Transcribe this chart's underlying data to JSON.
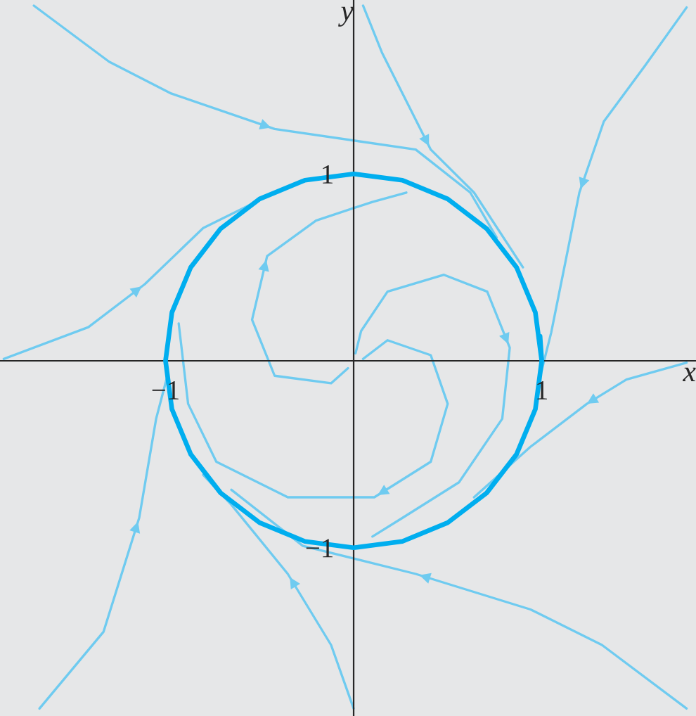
{
  "chart_data": {
    "type": "line",
    "xlabel": "x",
    "ylabel": "y",
    "xlim": [
      -1.88,
      1.82
    ],
    "ylim": [
      -1.9,
      1.93
    ],
    "xticks": [
      {
        "value": -1,
        "label": "−1"
      },
      1
    ],
    "yticks": [
      {
        "value": -1,
        "label": "−1"
      },
      1
    ],
    "grid": false,
    "legend": false,
    "marker": "none",
    "line_style": "solid",
    "series": [
      {
        "color": "#00aeef",
        "x": [
          1,
          0.966,
          0.866,
          0.707,
          0.5,
          0.259,
          0,
          -0.259,
          -0.5,
          -0.707,
          -0.866,
          -0.966,
          -1,
          -0.966,
          -0.866,
          -0.707,
          -0.5,
          -0.259,
          0,
          0.259,
          0.5,
          0.707,
          0.866,
          0.966,
          1,
          0.991
        ],
        "values": [
          0,
          0.259,
          0.5,
          0.707,
          0.866,
          0.966,
          1,
          0.966,
          0.866,
          0.707,
          0.5,
          0.259,
          0,
          -0.259,
          -0.5,
          -0.707,
          -0.866,
          -0.966,
          -1,
          -0.966,
          -0.866,
          -0.707,
          -0.5,
          -0.259,
          0,
          0.131
        ]
      },
      {
        "color": "#6fcbf0",
        "x": [
          -1.7,
          -1.3,
          -0.97,
          -0.42,
          0.33,
          0.62,
          0.76
        ],
        "values": [
          1.9,
          1.6,
          1.43,
          1.24,
          1.13,
          0.9,
          0.66
        ]
      },
      {
        "color": "#6fcbf0",
        "x": [
          0.05,
          0.15,
          0.26,
          0.41,
          0.64,
          0.9
        ],
        "values": [
          1.9,
          1.65,
          1.43,
          1.13,
          0.9,
          0.5
        ]
      },
      {
        "color": "#6fcbf0",
        "x": [
          1.77,
          1.55,
          1.33,
          1.2,
          1.12,
          1.05,
          1.0
        ],
        "values": [
          1.89,
          1.58,
          1.28,
          0.9,
          0.5,
          0.15,
          -0.05
        ]
      },
      {
        "color": "#6fcbf0",
        "x": [
          1.77,
          1.45,
          1.24,
          0.94,
          0.64
        ],
        "values": [
          -0.01,
          -0.1,
          -0.23,
          -0.46,
          -0.73
        ]
      },
      {
        "color": "#6fcbf0",
        "x": [
          1.77,
          1.32,
          0.94,
          0.33,
          -0.27,
          -0.65
        ],
        "values": [
          -1.86,
          -1.52,
          -1.33,
          -1.14,
          -0.99,
          -0.69
        ]
      },
      {
        "color": "#6fcbf0",
        "x": [
          0,
          -0.12,
          -0.35,
          -0.65,
          -0.8
        ],
        "values": [
          -1.86,
          -1.52,
          -1.14,
          -0.77,
          -0.61
        ]
      },
      {
        "color": "#6fcbf0",
        "x": [
          -1.67,
          -1.33,
          -1.14,
          -1.05,
          -0.99
        ],
        "values": [
          -1.86,
          -1.45,
          -0.84,
          -0.31,
          -0.08
        ]
      },
      {
        "color": "#6fcbf0",
        "x": [
          -1.86,
          -1.41,
          -1.11,
          -0.8,
          -0.5
        ],
        "values": [
          0.01,
          0.18,
          0.41,
          0.71,
          0.86
        ]
      },
      {
        "color": "#6fcbf0",
        "x": [
          0.01,
          0.04,
          0.18,
          0.48,
          0.71,
          0.83,
          0.79,
          0.56,
          0.26,
          0.1
        ],
        "values": [
          0.04,
          0.16,
          0.37,
          0.46,
          0.37,
          0.07,
          -0.31,
          -0.65,
          -0.84,
          -0.94
        ]
      },
      {
        "color": "#6fcbf0",
        "x": [
          0.05,
          0.18,
          0.41,
          0.5,
          0.41,
          0.11,
          -0.35,
          -0.73,
          -0.88,
          -0.93
        ],
        "values": [
          0.01,
          0.11,
          0.03,
          -0.23,
          -0.54,
          -0.73,
          -0.73,
          -0.54,
          -0.23,
          0.2
        ]
      },
      {
        "color": "#6fcbf0",
        "x": [
          -0.03,
          -0.12,
          -0.42,
          -0.54,
          -0.46,
          -0.2,
          0.1,
          0.28
        ],
        "values": [
          -0.04,
          -0.12,
          -0.08,
          0.22,
          0.56,
          0.75,
          0.85,
          0.9
        ]
      }
    ]
  }
}
